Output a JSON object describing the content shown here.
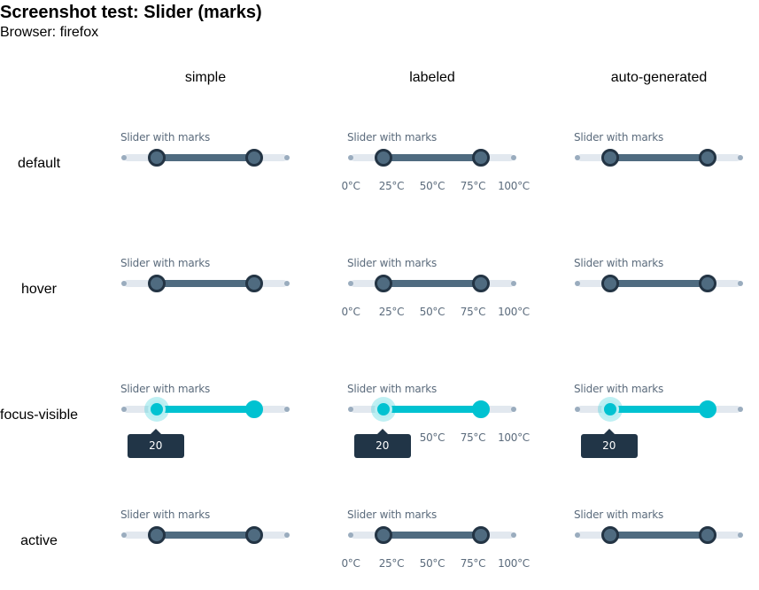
{
  "header": {
    "title": "Screenshot test: Slider (marks)",
    "subtitle": "Browser: firefox"
  },
  "columns": [
    "simple",
    "labeled",
    "auto-generated"
  ],
  "rows": [
    "default",
    "hover",
    "focus-visible",
    "active"
  ],
  "slider": {
    "label": "Slider with marks",
    "values": [
      20,
      80
    ],
    "marks": [
      "0°C",
      "25°C",
      "50°C",
      "75°C",
      "100°C"
    ],
    "tooltip_value": "20"
  },
  "colors": {
    "track": "#4f6b80",
    "focus_track": "#00c2d1",
    "rail": "#e2e8ef",
    "tooltip": "#213547"
  }
}
